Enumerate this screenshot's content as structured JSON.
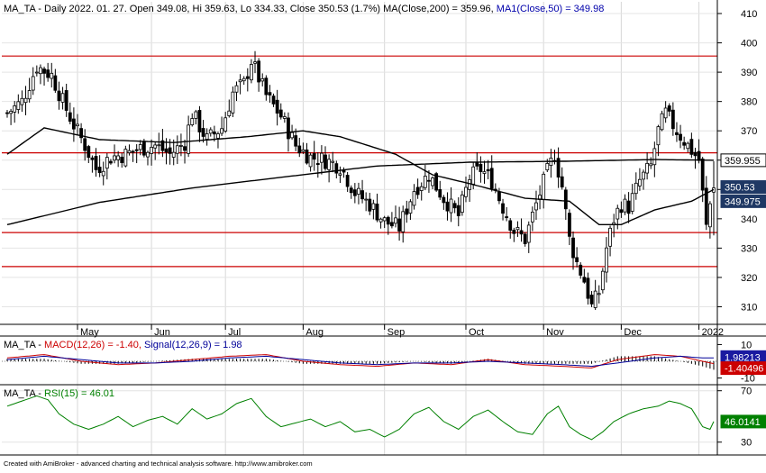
{
  "chart_data": [
    {
      "type": "candlestick",
      "title": "MA_TA - Daily 2022. 01. 27. Open 349.08, Hi 359.63, Lo 334.33, Close 350.53 (1.7%) ",
      "ma200_label": "MA(Close,200) = 359.96,",
      "ma50_label": "MA1(Close,50) = 349.98",
      "y_ticks": [
        "410",
        "400",
        "390",
        "380",
        "370",
        "360",
        "350",
        "340",
        "330",
        "320",
        "310"
      ],
      "ylim": [
        304,
        414
      ],
      "x_ticks": [
        "May",
        "Jun",
        "Jul",
        "Aug",
        "Sep",
        "Oct",
        "Nov",
        "Dec",
        "2022"
      ],
      "horizontal_lines": [
        395.5,
        362.5,
        335.3,
        323.7
      ],
      "value_badges": {
        "ma200": "359.955",
        "close": "350.53",
        "ma50": "349.975"
      },
      "close_keyframes": [
        [
          0,
          376
        ],
        [
          4,
          380
        ],
        [
          8,
          392
        ],
        [
          12,
          389
        ],
        [
          15,
          380
        ],
        [
          18,
          372
        ],
        [
          21,
          365
        ],
        [
          24,
          357
        ],
        [
          28,
          361
        ],
        [
          32,
          362
        ],
        [
          36,
          364
        ],
        [
          40,
          365
        ],
        [
          44,
          362
        ],
        [
          48,
          366
        ],
        [
          50,
          376
        ],
        [
          54,
          367
        ],
        [
          58,
          371
        ],
        [
          61,
          383
        ],
        [
          64,
          386
        ],
        [
          66,
          394
        ],
        [
          70,
          382
        ],
        [
          74,
          375
        ],
        [
          78,
          365
        ],
        [
          82,
          361
        ],
        [
          86,
          360
        ],
        [
          90,
          358
        ],
        [
          94,
          349
        ],
        [
          98,
          345
        ],
        [
          102,
          339
        ],
        [
          106,
          337
        ],
        [
          110,
          350
        ],
        [
          114,
          355
        ],
        [
          118,
          347
        ],
        [
          122,
          341
        ],
        [
          125,
          354
        ],
        [
          128,
          357
        ],
        [
          131,
          353
        ],
        [
          134,
          344
        ],
        [
          137,
          336
        ],
        [
          140,
          333
        ],
        [
          143,
          345
        ],
        [
          146,
          356
        ],
        [
          148,
          362
        ],
        [
          150,
          351
        ],
        [
          152,
          333
        ],
        [
          154,
          325
        ],
        [
          156,
          319
        ],
        [
          158,
          310
        ],
        [
          160,
          315
        ],
        [
          162,
          330
        ],
        [
          164,
          340
        ],
        [
          166,
          345
        ],
        [
          168,
          344
        ],
        [
          171,
          353
        ],
        [
          174,
          358
        ],
        [
          176,
          370
        ],
        [
          178,
          376
        ],
        [
          181,
          370
        ],
        [
          184,
          365
        ],
        [
          187,
          360
        ],
        [
          189,
          337
        ],
        [
          190,
          345
        ],
        [
          191,
          350.53
        ]
      ],
      "ma200_keyframes": [
        [
          0,
          338
        ],
        [
          25,
          345.6
        ],
        [
          50,
          350.5
        ],
        [
          75,
          354.3
        ],
        [
          100,
          358
        ],
        [
          125,
          359.3
        ],
        [
          150,
          359.6
        ],
        [
          175,
          360.2
        ],
        [
          191,
          359.96
        ]
      ],
      "ma50_keyframes": [
        [
          0,
          362
        ],
        [
          10,
          371
        ],
        [
          25,
          367
        ],
        [
          45,
          366
        ],
        [
          65,
          368
        ],
        [
          80,
          370
        ],
        [
          90,
          368
        ],
        [
          105,
          362
        ],
        [
          115,
          355
        ],
        [
          125,
          352
        ],
        [
          140,
          347
        ],
        [
          152,
          346
        ],
        [
          160,
          338
        ],
        [
          166,
          338
        ],
        [
          175,
          343
        ],
        [
          185,
          346
        ],
        [
          191,
          349.98
        ]
      ],
      "up_color": "#000000",
      "down_color": "#000000"
    },
    {
      "type": "line",
      "label_prefix": "MA_TA - ",
      "macd_label": "MACD(12,26) = -1.40,",
      "signal_label": "Signal(12,26,9) = 1.98",
      "y_ticks": [
        "10",
        "-10"
      ],
      "ylim": [
        -14,
        14
      ],
      "badges": {
        "signal": "1.98213",
        "macd": "-1.40496"
      },
      "macd_keyframes": [
        [
          0,
          2
        ],
        [
          10,
          4
        ],
        [
          20,
          0
        ],
        [
          30,
          -2
        ],
        [
          40,
          -1
        ],
        [
          50,
          1
        ],
        [
          60,
          3
        ],
        [
          70,
          4
        ],
        [
          80,
          0
        ],
        [
          90,
          -2
        ],
        [
          100,
          -3
        ],
        [
          110,
          -1
        ],
        [
          120,
          -2
        ],
        [
          130,
          1
        ],
        [
          140,
          -2
        ],
        [
          150,
          -3
        ],
        [
          158,
          -4
        ],
        [
          165,
          1
        ],
        [
          175,
          4
        ],
        [
          182,
          3
        ],
        [
          188,
          0
        ],
        [
          191,
          -1.4
        ]
      ],
      "signal_keyframes": [
        [
          0,
          1
        ],
        [
          10,
          3
        ],
        [
          20,
          1
        ],
        [
          30,
          -1
        ],
        [
          40,
          -1
        ],
        [
          50,
          0
        ],
        [
          60,
          2
        ],
        [
          70,
          3
        ],
        [
          80,
          1
        ],
        [
          90,
          -1
        ],
        [
          100,
          -2
        ],
        [
          110,
          -1
        ],
        [
          120,
          -1
        ],
        [
          130,
          0
        ],
        [
          140,
          -1
        ],
        [
          150,
          -2
        ],
        [
          158,
          -3
        ],
        [
          165,
          -1
        ],
        [
          175,
          2
        ],
        [
          182,
          3
        ],
        [
          188,
          2
        ],
        [
          191,
          1.98
        ]
      ],
      "macd_color": "#cc0000",
      "signal_color": "#000099"
    },
    {
      "type": "line",
      "label_prefix": "MA_TA - ",
      "rsi_label": "RSI(15) = 46.01",
      "y_ticks": [
        "70",
        "30"
      ],
      "ylim": [
        20,
        74
      ],
      "badge": "46.0141",
      "rsi_keyframes": [
        [
          0,
          58
        ],
        [
          4,
          62
        ],
        [
          8,
          66
        ],
        [
          11,
          63
        ],
        [
          14,
          52
        ],
        [
          18,
          44
        ],
        [
          22,
          40
        ],
        [
          26,
          44
        ],
        [
          30,
          50
        ],
        [
          34,
          42
        ],
        [
          38,
          47
        ],
        [
          42,
          50
        ],
        [
          46,
          44
        ],
        [
          50,
          56
        ],
        [
          54,
          48
        ],
        [
          58,
          52
        ],
        [
          62,
          60
        ],
        [
          66,
          64
        ],
        [
          70,
          50
        ],
        [
          74,
          42
        ],
        [
          78,
          45
        ],
        [
          82,
          48
        ],
        [
          86,
          42
        ],
        [
          90,
          46
        ],
        [
          94,
          38
        ],
        [
          98,
          40
        ],
        [
          102,
          34
        ],
        [
          106,
          40
        ],
        [
          110,
          52
        ],
        [
          114,
          57
        ],
        [
          118,
          46
        ],
        [
          122,
          40
        ],
        [
          126,
          50
        ],
        [
          130,
          55
        ],
        [
          134,
          46
        ],
        [
          138,
          38
        ],
        [
          142,
          36
        ],
        [
          146,
          52
        ],
        [
          149,
          58
        ],
        [
          152,
          42
        ],
        [
          155,
          36
        ],
        [
          158,
          32
        ],
        [
          161,
          38
        ],
        [
          164,
          46
        ],
        [
          168,
          52
        ],
        [
          172,
          56
        ],
        [
          176,
          58
        ],
        [
          179,
          62
        ],
        [
          182,
          60
        ],
        [
          185,
          56
        ],
        [
          188,
          42
        ],
        [
          190,
          40
        ],
        [
          191,
          46.01
        ]
      ],
      "color": "#008000"
    }
  ],
  "footer": "Created with AmiBroker - advanced charting and technical analysis software. http://www.amibroker.com"
}
